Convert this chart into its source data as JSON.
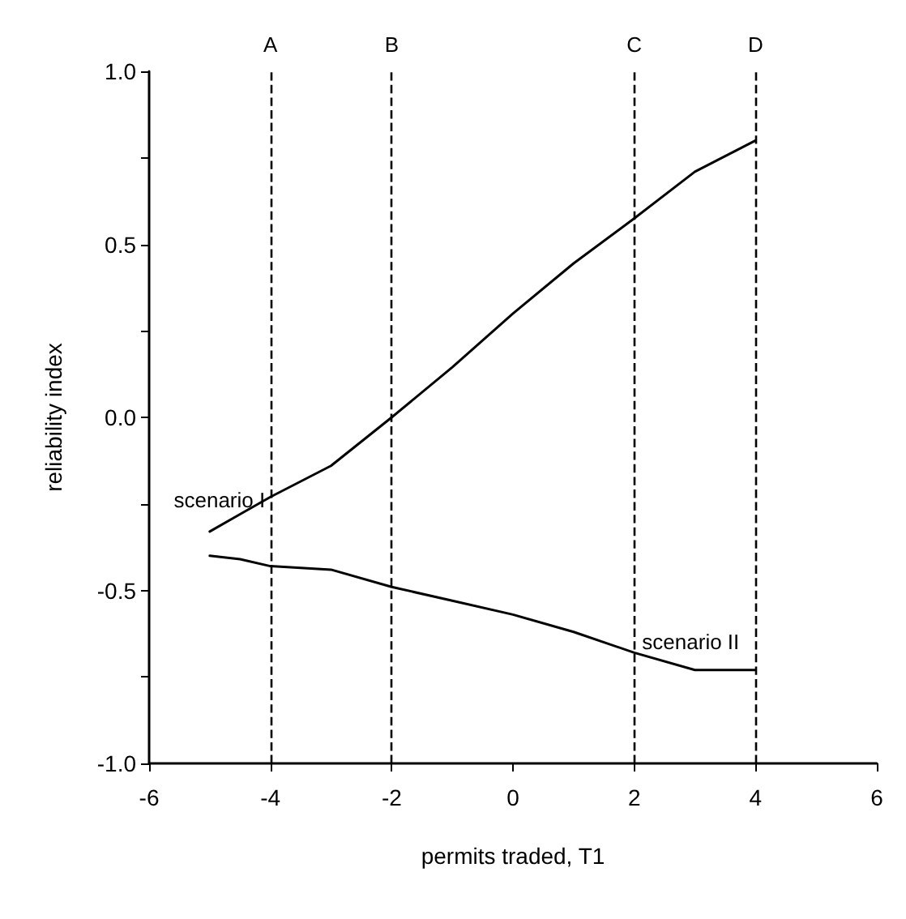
{
  "chart_data": {
    "type": "line",
    "xlabel": "permits traded, T1",
    "ylabel": "reliability index",
    "x": [
      -5,
      -4.5,
      -4,
      -3,
      -2,
      -1,
      0,
      1,
      2,
      3,
      4
    ],
    "series": [
      {
        "name": "scenario I",
        "color": "#000000",
        "values": [
          -0.33,
          -0.28,
          -0.23,
          -0.14,
          0.0,
          0.145,
          0.3,
          0.445,
          0.575,
          0.71,
          0.8
        ]
      },
      {
        "name": "scenario II",
        "color": "#000000",
        "values": [
          -0.4,
          -0.41,
          -0.43,
          -0.44,
          -0.49,
          -0.53,
          -0.57,
          -0.62,
          -0.68,
          -0.73,
          -0.73
        ]
      }
    ],
    "xlim": [
      -6,
      6
    ],
    "xticks": [
      -6,
      -4,
      -2,
      0,
      2,
      4,
      6
    ],
    "ylim": [
      -1.0,
      1.0
    ],
    "yticks": [
      {
        "value": -1.0,
        "label": "-1.0"
      },
      {
        "value": -0.75,
        "label": null
      },
      {
        "value": -0.5,
        "label": "-0.5"
      },
      {
        "value": -0.25,
        "label": null
      },
      {
        "value": 0.0,
        "label": "0.0"
      },
      {
        "value": 0.25,
        "label": null
      },
      {
        "value": 0.5,
        "label": "0.5"
      },
      {
        "value": 0.75,
        "label": null
      },
      {
        "value": 1.0,
        "label": "1.0"
      }
    ],
    "ref_lines": [
      {
        "axis": "x",
        "value": -4,
        "label": "A",
        "line_style": "dashed"
      },
      {
        "axis": "x",
        "value": -2,
        "label": "B",
        "line_style": "dashed"
      },
      {
        "axis": "x",
        "value": 2,
        "label": "C",
        "line_style": "dashed"
      },
      {
        "axis": "x",
        "value": 4,
        "label": "D",
        "line_style": "dashed"
      }
    ],
    "grid": false,
    "legend": false,
    "marker": "none",
    "line_style": "solid"
  }
}
